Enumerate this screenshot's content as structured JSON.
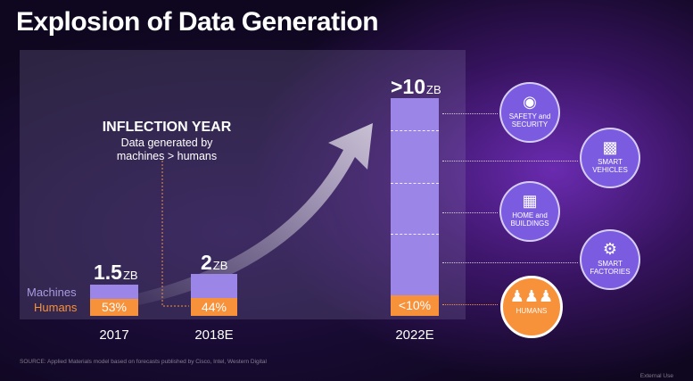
{
  "title": "Explosion of Data Generation",
  "chart_data": {
    "type": "bar",
    "stacked": true,
    "categories": [
      "2017",
      "2018E",
      "2022E"
    ],
    "unit": "ZB",
    "totals_display": [
      "1.5",
      "2",
      ">10"
    ],
    "totals": [
      1.5,
      2,
      10
    ],
    "series": [
      {
        "name": "Machines",
        "share_pct": [
          47,
          56,
          90
        ]
      },
      {
        "name": "Humans",
        "share_pct": [
          53,
          44,
          10
        ],
        "labels": [
          "53%",
          "44%",
          "<10%"
        ]
      }
    ],
    "annotation": {
      "heading": "INFLECTION YEAR",
      "lines": [
        "Data generated by",
        "machines > humans"
      ]
    },
    "colors": {
      "machines": "#9b86e8",
      "humans": "#f7913a"
    }
  },
  "categories_right": [
    {
      "icon": "camera-icon",
      "label": [
        "SAFETY and",
        "SECURITY"
      ]
    },
    {
      "icon": "car-icon",
      "label": [
        "SMART",
        "VEHICLES"
      ]
    },
    {
      "icon": "building-icon",
      "label": [
        "HOME and",
        "BUILDINGS"
      ]
    },
    {
      "icon": "robot-arm-icon",
      "label": [
        "SMART",
        "FACTORIES"
      ]
    },
    {
      "icon": "people-icon",
      "label": [
        "HUMANS"
      ]
    }
  ],
  "footer": {
    "source": "SOURCE: Applied Materials model based on forecasts published by Cisco, Intel, Western Digital",
    "classification": "External Use"
  }
}
